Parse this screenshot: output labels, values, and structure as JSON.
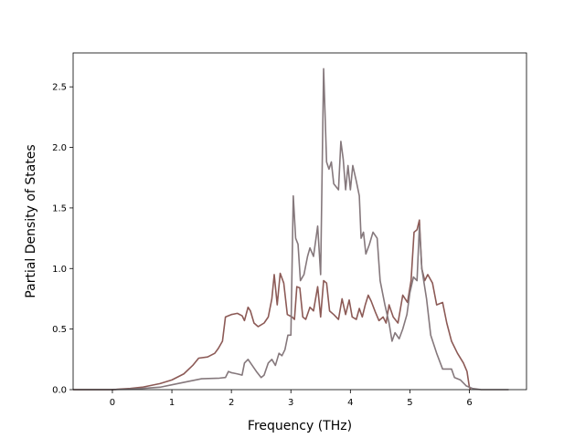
{
  "chart_data": {
    "type": "line",
    "title": "",
    "xlabel": "Frequency (THz)",
    "ylabel": "Partial Density of States",
    "xlim": [
      -0.66,
      6.96
    ],
    "ylim": [
      0,
      2.78
    ],
    "x_ticks": [
      0,
      1,
      2,
      3,
      4,
      5,
      6
    ],
    "y_ticks": [
      0.0,
      0.5,
      1.0,
      1.5,
      2.0,
      2.5
    ],
    "grid": false,
    "legend": "none",
    "series": [
      {
        "color": "#8c5a56",
        "points": [
          [
            -0.66,
            0
          ],
          [
            0,
            0
          ],
          [
            0.3,
            0.01
          ],
          [
            0.5,
            0.02
          ],
          [
            0.8,
            0.05
          ],
          [
            1.0,
            0.08
          ],
          [
            1.2,
            0.13
          ],
          [
            1.35,
            0.2
          ],
          [
            1.45,
            0.26
          ],
          [
            1.6,
            0.27
          ],
          [
            1.72,
            0.3
          ],
          [
            1.78,
            0.34
          ],
          [
            1.85,
            0.4
          ],
          [
            1.9,
            0.6
          ],
          [
            2.0,
            0.62
          ],
          [
            2.1,
            0.63
          ],
          [
            2.18,
            0.61
          ],
          [
            2.22,
            0.57
          ],
          [
            2.28,
            0.68
          ],
          [
            2.32,
            0.65
          ],
          [
            2.38,
            0.55
          ],
          [
            2.45,
            0.52
          ],
          [
            2.55,
            0.55
          ],
          [
            2.62,
            0.6
          ],
          [
            2.68,
            0.75
          ],
          [
            2.72,
            0.95
          ],
          [
            2.77,
            0.7
          ],
          [
            2.82,
            0.96
          ],
          [
            2.88,
            0.88
          ],
          [
            2.94,
            0.62
          ],
          [
            3.02,
            0.6
          ],
          [
            3.06,
            0.58
          ],
          [
            3.1,
            0.85
          ],
          [
            3.15,
            0.84
          ],
          [
            3.2,
            0.6
          ],
          [
            3.25,
            0.58
          ],
          [
            3.32,
            0.68
          ],
          [
            3.38,
            0.65
          ],
          [
            3.45,
            0.85
          ],
          [
            3.5,
            0.6
          ],
          [
            3.55,
            0.9
          ],
          [
            3.6,
            0.88
          ],
          [
            3.65,
            0.65
          ],
          [
            3.72,
            0.62
          ],
          [
            3.8,
            0.58
          ],
          [
            3.86,
            0.75
          ],
          [
            3.92,
            0.62
          ],
          [
            3.98,
            0.74
          ],
          [
            4.03,
            0.6
          ],
          [
            4.1,
            0.58
          ],
          [
            4.15,
            0.67
          ],
          [
            4.2,
            0.6
          ],
          [
            4.25,
            0.7
          ],
          [
            4.3,
            0.78
          ],
          [
            4.35,
            0.73
          ],
          [
            4.42,
            0.64
          ],
          [
            4.48,
            0.57
          ],
          [
            4.55,
            0.6
          ],
          [
            4.6,
            0.55
          ],
          [
            4.65,
            0.7
          ],
          [
            4.72,
            0.6
          ],
          [
            4.8,
            0.55
          ],
          [
            4.88,
            0.78
          ],
          [
            4.96,
            0.72
          ],
          [
            5.02,
            0.9
          ],
          [
            5.07,
            1.3
          ],
          [
            5.12,
            1.32
          ],
          [
            5.16,
            1.4
          ],
          [
            5.2,
            1.0
          ],
          [
            5.25,
            0.9
          ],
          [
            5.3,
            0.95
          ],
          [
            5.38,
            0.88
          ],
          [
            5.45,
            0.7
          ],
          [
            5.55,
            0.72
          ],
          [
            5.62,
            0.55
          ],
          [
            5.7,
            0.4
          ],
          [
            5.8,
            0.3
          ],
          [
            5.9,
            0.22
          ],
          [
            5.96,
            0.15
          ],
          [
            6.0,
            0.02
          ],
          [
            6.02,
            0
          ]
        ]
      },
      {
        "color": "#85787c",
        "points": [
          [
            -0.66,
            0
          ],
          [
            0,
            0
          ],
          [
            0.3,
            0.005
          ],
          [
            0.5,
            0.01
          ],
          [
            0.8,
            0.02
          ],
          [
            1.0,
            0.04
          ],
          [
            1.3,
            0.07
          ],
          [
            1.5,
            0.09
          ],
          [
            1.8,
            0.095
          ],
          [
            1.9,
            0.1
          ],
          [
            1.95,
            0.15
          ],
          [
            2.0,
            0.14
          ],
          [
            2.1,
            0.13
          ],
          [
            2.18,
            0.12
          ],
          [
            2.22,
            0.22
          ],
          [
            2.28,
            0.25
          ],
          [
            2.35,
            0.2
          ],
          [
            2.42,
            0.15
          ],
          [
            2.5,
            0.1
          ],
          [
            2.55,
            0.12
          ],
          [
            2.62,
            0.22
          ],
          [
            2.68,
            0.25
          ],
          [
            2.74,
            0.2
          ],
          [
            2.8,
            0.3
          ],
          [
            2.85,
            0.28
          ],
          [
            2.9,
            0.33
          ],
          [
            2.95,
            0.45
          ],
          [
            3.0,
            0.45
          ],
          [
            3.04,
            1.6
          ],
          [
            3.08,
            1.25
          ],
          [
            3.12,
            1.2
          ],
          [
            3.16,
            0.9
          ],
          [
            3.22,
            0.95
          ],
          [
            3.28,
            1.1
          ],
          [
            3.32,
            1.17
          ],
          [
            3.38,
            1.1
          ],
          [
            3.45,
            1.35
          ],
          [
            3.5,
            0.95
          ],
          [
            3.55,
            2.65
          ],
          [
            3.6,
            1.88
          ],
          [
            3.64,
            1.82
          ],
          [
            3.68,
            1.88
          ],
          [
            3.72,
            1.7
          ],
          [
            3.8,
            1.65
          ],
          [
            3.84,
            2.05
          ],
          [
            3.88,
            1.9
          ],
          [
            3.92,
            1.65
          ],
          [
            3.96,
            1.85
          ],
          [
            4.0,
            1.65
          ],
          [
            4.04,
            1.85
          ],
          [
            4.1,
            1.72
          ],
          [
            4.15,
            1.6
          ],
          [
            4.18,
            1.25
          ],
          [
            4.22,
            1.3
          ],
          [
            4.26,
            1.12
          ],
          [
            4.32,
            1.2
          ],
          [
            4.38,
            1.3
          ],
          [
            4.45,
            1.25
          ],
          [
            4.5,
            0.9
          ],
          [
            4.58,
            0.7
          ],
          [
            4.65,
            0.55
          ],
          [
            4.7,
            0.4
          ],
          [
            4.75,
            0.47
          ],
          [
            4.82,
            0.42
          ],
          [
            4.88,
            0.5
          ],
          [
            4.95,
            0.62
          ],
          [
            5.0,
            0.8
          ],
          [
            5.06,
            0.93
          ],
          [
            5.12,
            0.9
          ],
          [
            5.16,
            1.35
          ],
          [
            5.2,
            1.0
          ],
          [
            5.28,
            0.75
          ],
          [
            5.35,
            0.45
          ],
          [
            5.45,
            0.3
          ],
          [
            5.55,
            0.17
          ],
          [
            5.7,
            0.17
          ],
          [
            5.75,
            0.1
          ],
          [
            5.85,
            0.08
          ],
          [
            5.95,
            0.03
          ],
          [
            6.05,
            0.01
          ],
          [
            6.2,
            0
          ],
          [
            6.66,
            0
          ]
        ]
      }
    ]
  }
}
